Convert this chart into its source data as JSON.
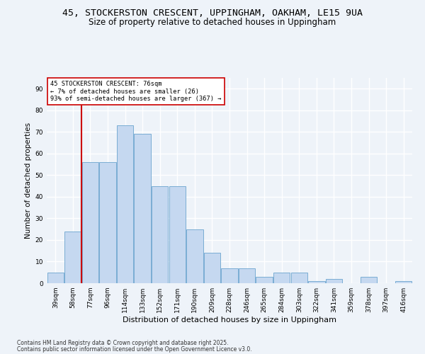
{
  "title1": "45, STOCKERSTON CRESCENT, UPPINGHAM, OAKHAM, LE15 9UA",
  "title2": "Size of property relative to detached houses in Uppingham",
  "xlabel": "Distribution of detached houses by size in Uppingham",
  "ylabel": "Number of detached properties",
  "categories": [
    "39sqm",
    "58sqm",
    "77sqm",
    "96sqm",
    "114sqm",
    "133sqm",
    "152sqm",
    "171sqm",
    "190sqm",
    "209sqm",
    "228sqm",
    "246sqm",
    "265sqm",
    "284sqm",
    "303sqm",
    "322sqm",
    "341sqm",
    "359sqm",
    "378sqm",
    "397sqm",
    "416sqm"
  ],
  "values": [
    5,
    24,
    56,
    56,
    73,
    69,
    45,
    45,
    25,
    14,
    7,
    7,
    3,
    5,
    5,
    1,
    2,
    0,
    3,
    0,
    1
  ],
  "bar_color": "#c5d8f0",
  "bar_edge_color": "#7aadd4",
  "marker_line_color": "#cc0000",
  "annotation_line1": "45 STOCKERSTON CRESCENT: 76sqm",
  "annotation_line2": "← 7% of detached houses are smaller (26)",
  "annotation_line3": "93% of semi-detached houses are larger (367) →",
  "annotation_box_color": "#ffffff",
  "annotation_box_edge": "#cc0000",
  "ylim": [
    0,
    95
  ],
  "yticks": [
    0,
    10,
    20,
    30,
    40,
    50,
    60,
    70,
    80,
    90
  ],
  "footnote1": "Contains HM Land Registry data © Crown copyright and database right 2025.",
  "footnote2": "Contains public sector information licensed under the Open Government Licence v3.0.",
  "bg_color": "#eef3f9",
  "plot_bg_color": "#eef3f9",
  "grid_color": "#ffffff",
  "title_fontsize": 9.5,
  "subtitle_fontsize": 8.5,
  "axis_label_fontsize": 7.5,
  "tick_fontsize": 6.5
}
